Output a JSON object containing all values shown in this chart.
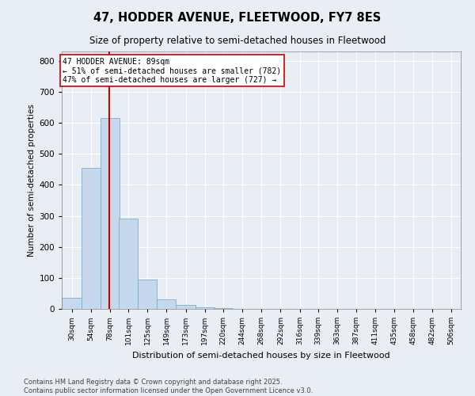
{
  "title1": "47, HODDER AVENUE, FLEETWOOD, FY7 8ES",
  "title2": "Size of property relative to semi-detached houses in Fleetwood",
  "xlabel": "Distribution of semi-detached houses by size in Fleetwood",
  "ylabel": "Number of semi-detached properties",
  "footnote": "Contains HM Land Registry data © Crown copyright and database right 2025.\nContains public sector information licensed under the Open Government Licence v3.0.",
  "bins": [
    30,
    54,
    78,
    101,
    125,
    149,
    173,
    197,
    220,
    244,
    268,
    292,
    316,
    339,
    363,
    387,
    411,
    435,
    458,
    482,
    506
  ],
  "values": [
    35,
    455,
    615,
    290,
    95,
    30,
    12,
    5,
    3,
    0,
    0,
    0,
    0,
    0,
    0,
    0,
    0,
    0,
    0,
    0,
    0
  ],
  "bar_color": "#c8d8ec",
  "bar_edge_color": "#7aaed0",
  "property_size": 89,
  "vline_color": "#cc0000",
  "annotation_text": "47 HODDER AVENUE: 89sqm\n← 51% of semi-detached houses are smaller (782)\n47% of semi-detached houses are larger (727) →",
  "annotation_box_color": "#ffffff",
  "annotation_box_edge": "#cc0000",
  "ylim": [
    0,
    830
  ],
  "yticks": [
    0,
    100,
    200,
    300,
    400,
    500,
    600,
    700,
    800
  ],
  "background_color": "#e8eef4",
  "plot_background": "#e8eef4",
  "grid_color": "#ffffff"
}
